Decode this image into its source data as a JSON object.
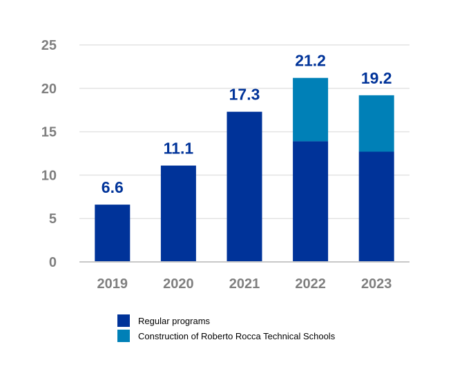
{
  "chart_data": {
    "type": "bar",
    "stacked": true,
    "categories": [
      "2019",
      "2020",
      "2021",
      "2022",
      "2023"
    ],
    "series": [
      {
        "name": "Regular programs",
        "color": "#003399",
        "values": [
          6.6,
          11.1,
          17.3,
          13.9,
          12.7
        ]
      },
      {
        "name": "Construction of Roberto Rocca Technical Schools",
        "color": "#0080b7",
        "values": [
          0,
          0,
          0,
          7.3,
          6.5
        ]
      }
    ],
    "totals": [
      "6.6",
      "11.1",
      "17.3",
      "21.2",
      "19.2"
    ],
    "ylim": [
      0,
      25
    ],
    "yticks": [
      "0",
      "5",
      "10",
      "15",
      "20",
      "25"
    ],
    "grid": true,
    "legend_position": "bottom"
  }
}
